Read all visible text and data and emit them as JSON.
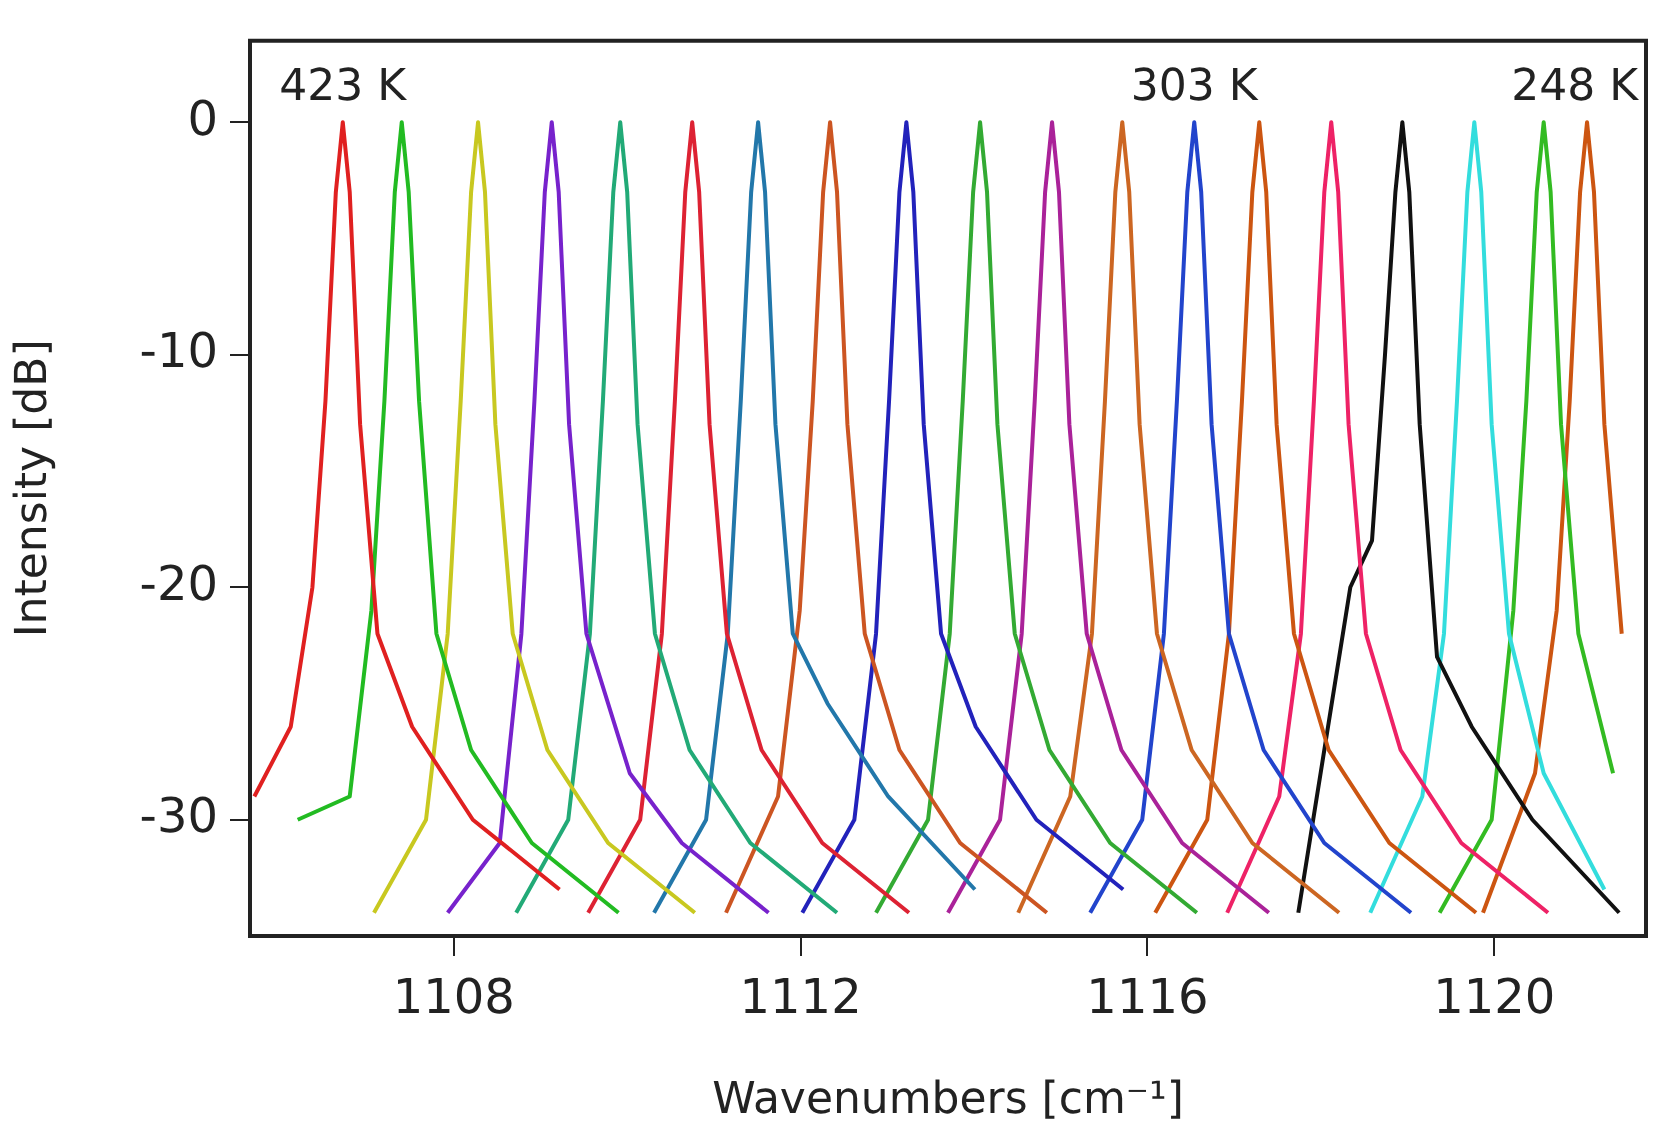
{
  "chart_data": {
    "type": "line",
    "xlabel": "Wavenumbers [cm⁻¹]",
    "ylabel": "Intensity [dB]",
    "xlim": [
      1105.65,
      1121.75
    ],
    "xticks": [
      1108,
      1112,
      1116,
      1120
    ],
    "ylim": [
      -35,
      3.5
    ],
    "yticks": [
      0,
      -10,
      -20,
      -30
    ],
    "grid": false,
    "legend": false,
    "marker": "none",
    "line_style": "solid",
    "annotations": [
      {
        "text": "423 K",
        "x": 1106.72,
        "y": 0
      },
      {
        "text": "303 K",
        "x": 1116.54,
        "y": 0
      },
      {
        "text": "248 K",
        "x": 1121.07,
        "y": 0
      }
    ],
    "series": [
      {
        "color": "#e02020",
        "x": [
          1105.7,
          1106.12,
          1106.37,
          1106.52,
          1106.64,
          1106.72,
          1106.8,
          1106.92,
          1107.12,
          1107.52,
          1108.22,
          1109.22
        ],
        "values": [
          -29,
          -26,
          -20,
          -12,
          -3,
          0,
          -3,
          -13,
          -22,
          -26,
          -30,
          -33
        ]
      },
      {
        "color": "#22bb22",
        "x": [
          1106.2,
          1106.8,
          1107.05,
          1107.2,
          1107.32,
          1107.4,
          1107.48,
          1107.6,
          1107.8,
          1108.2,
          1108.9,
          1109.9
        ],
        "values": [
          -30,
          -29,
          -21,
          -12,
          -3,
          0,
          -3,
          -12,
          -22,
          -27,
          -31,
          -34
        ]
      },
      {
        "color": "#c8c820",
        "x": [
          1107.08,
          1107.68,
          1107.93,
          1108.08,
          1108.2,
          1108.28,
          1108.36,
          1108.48,
          1108.68,
          1109.08,
          1109.78,
          1110.78
        ],
        "values": [
          -34,
          -30,
          -22,
          -12,
          -3,
          0,
          -3,
          -13,
          -22,
          -27,
          -31,
          -34
        ]
      },
      {
        "color": "#7722cc",
        "x": [
          1107.93,
          1108.53,
          1108.78,
          1108.93,
          1109.05,
          1109.13,
          1109.21,
          1109.33,
          1109.53,
          1110.03,
          1110.63,
          1111.63
        ],
        "values": [
          -34,
          -31,
          -22,
          -12,
          -3,
          0,
          -3,
          -13,
          -22,
          -28,
          -31,
          -34
        ]
      },
      {
        "color": "#22aa77",
        "x": [
          1108.72,
          1109.32,
          1109.57,
          1109.72,
          1109.84,
          1109.92,
          1110.0,
          1110.12,
          1110.32,
          1110.72,
          1111.42,
          1112.42
        ],
        "values": [
          -34,
          -30,
          -22,
          -12,
          -3,
          0,
          -3,
          -13,
          -22,
          -27,
          -31,
          -34
        ]
      },
      {
        "color": "#dd2233",
        "x": [
          1109.55,
          1110.15,
          1110.4,
          1110.55,
          1110.67,
          1110.75,
          1110.83,
          1110.95,
          1111.15,
          1111.55,
          1112.25,
          1113.25
        ],
        "values": [
          -34,
          -30,
          -22,
          -12,
          -3,
          0,
          -3,
          -13,
          -22,
          -27,
          -31,
          -34
        ]
      },
      {
        "color": "#2277aa",
        "x": [
          1110.31,
          1110.91,
          1111.16,
          1111.31,
          1111.43,
          1111.51,
          1111.59,
          1111.71,
          1111.91,
          1112.31,
          1113.01,
          1114.01
        ],
        "values": [
          -34,
          -30,
          -22,
          -12,
          -3,
          0,
          -3,
          -13,
          -22,
          -25,
          -29,
          -33
        ]
      },
      {
        "color": "#cc5522",
        "x": [
          1111.14,
          1111.74,
          1111.99,
          1112.14,
          1112.26,
          1112.34,
          1112.42,
          1112.54,
          1112.74,
          1113.14,
          1113.84,
          1114.84
        ],
        "values": [
          -34,
          -29,
          -21,
          -12,
          -3,
          0,
          -3,
          -13,
          -22,
          -27,
          -31,
          -34
        ]
      },
      {
        "color": "#2222bb",
        "x": [
          1112.02,
          1112.62,
          1112.87,
          1113.02,
          1113.14,
          1113.22,
          1113.3,
          1113.42,
          1113.62,
          1114.02,
          1114.72,
          1115.72
        ],
        "values": [
          -34,
          -30,
          -22,
          -12,
          -3,
          0,
          -3,
          -13,
          -22,
          -26,
          -30,
          -33
        ]
      },
      {
        "color": "#33aa33",
        "x": [
          1112.87,
          1113.47,
          1113.72,
          1113.87,
          1113.99,
          1114.07,
          1114.15,
          1114.27,
          1114.47,
          1114.87,
          1115.57,
          1116.57
        ],
        "values": [
          -34,
          -30,
          -22,
          -12,
          -3,
          0,
          -3,
          -13,
          -22,
          -27,
          -31,
          -34
        ]
      },
      {
        "color": "#aa2299",
        "x": [
          1113.7,
          1114.3,
          1114.55,
          1114.7,
          1114.82,
          1114.9,
          1114.98,
          1115.1,
          1115.3,
          1115.7,
          1116.4,
          1117.4
        ],
        "values": [
          -34,
          -30,
          -22,
          -12,
          -3,
          0,
          -3,
          -13,
          -22,
          -27,
          -31,
          -34
        ]
      },
      {
        "color": "#cc6622",
        "x": [
          1114.51,
          1115.11,
          1115.36,
          1115.51,
          1115.63,
          1115.71,
          1115.79,
          1115.91,
          1116.11,
          1116.51,
          1117.21,
          1118.21
        ],
        "values": [
          -34,
          -29,
          -22,
          -12,
          -3,
          0,
          -3,
          -13,
          -22,
          -27,
          -31,
          -34
        ]
      },
      {
        "color": "#2244cc",
        "x": [
          1115.34,
          1115.94,
          1116.19,
          1116.34,
          1116.46,
          1116.54,
          1116.62,
          1116.74,
          1116.94,
          1117.34,
          1118.04,
          1119.04
        ],
        "values": [
          -34,
          -30,
          -22,
          -12,
          -3,
          0,
          -3,
          -13,
          -22,
          -27,
          -31,
          -34
        ]
      },
      {
        "color": "#cc5511",
        "x": [
          1116.09,
          1116.69,
          1116.94,
          1117.09,
          1117.21,
          1117.29,
          1117.37,
          1117.49,
          1117.69,
          1118.09,
          1118.79,
          1119.79
        ],
        "values": [
          -34,
          -30,
          -22,
          -12,
          -3,
          0,
          -3,
          -13,
          -22,
          -27,
          -31,
          -34
        ]
      },
      {
        "color": "#ee2266",
        "x": [
          1116.92,
          1117.52,
          1117.77,
          1117.92,
          1118.04,
          1118.12,
          1118.2,
          1118.32,
          1118.52,
          1118.92,
          1119.62,
          1120.62
        ],
        "values": [
          -34,
          -29,
          -22,
          -12,
          -3,
          0,
          -3,
          -13,
          -22,
          -27,
          -31,
          -34
        ]
      },
      {
        "color": "#111111",
        "x": [
          1117.74,
          1118.34,
          1118.59,
          1118.74,
          1118.86,
          1118.94,
          1119.02,
          1119.14,
          1119.34,
          1119.74,
          1120.44,
          1121.44
        ],
        "values": [
          -34,
          -20,
          -18,
          -10,
          -3,
          0,
          -3,
          -13,
          -23,
          -26,
          -30,
          -34
        ]
      },
      {
        "color": "#33dddd",
        "x": [
          1118.57,
          1119.17,
          1119.42,
          1119.57,
          1119.69,
          1119.77,
          1119.85,
          1119.97,
          1120.17,
          1120.57,
          1121.27
        ],
        "values": [
          -34,
          -29,
          -22,
          -12,
          -3,
          0,
          -3,
          -13,
          -22,
          -28,
          -33
        ]
      },
      {
        "color": "#33bb22",
        "x": [
          1119.37,
          1119.97,
          1120.22,
          1120.37,
          1120.49,
          1120.57,
          1120.65,
          1120.77,
          1120.97,
          1121.37
        ],
        "values": [
          -34,
          -30,
          -21,
          -12,
          -3,
          0,
          -3,
          -13,
          -22,
          -28
        ]
      },
      {
        "color": "#cc5511",
        "x": [
          1119.87,
          1120.47,
          1120.72,
          1120.87,
          1120.99,
          1121.07,
          1121.15,
          1121.27,
          1121.47
        ],
        "values": [
          -34,
          -28,
          -21,
          -12,
          -3,
          0,
          -3,
          -13,
          -22
        ]
      }
    ]
  }
}
